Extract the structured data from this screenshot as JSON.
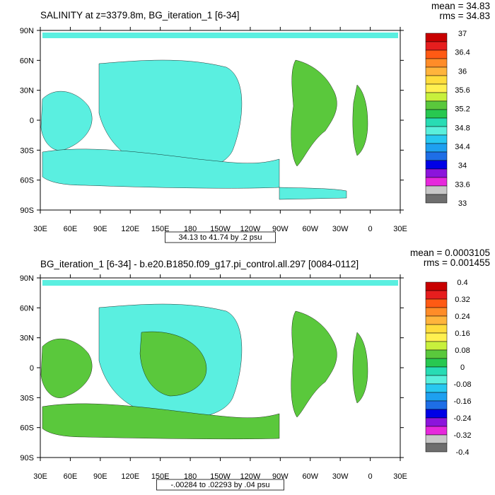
{
  "chart_data": [
    {
      "type": "heatmap",
      "title": "SALINITY at z=3379.8m, BG_iteration_1 [6-34]",
      "stats": {
        "mean": "mean = 34.83",
        "rms": "rms = 34.83"
      },
      "x_ticks": [
        "30E",
        "60E",
        "90E",
        "120E",
        "150E",
        "180",
        "150W",
        "120W",
        "90W",
        "60W",
        "30W",
        "0",
        "30E"
      ],
      "y_ticks": [
        "90N",
        "60N",
        "30N",
        "0",
        "30S",
        "60S",
        "90S"
      ],
      "contour_info": "34.13 to 41.74 by .2 psu",
      "colorbar": {
        "labels": [
          "37",
          "36.4",
          "36",
          "35.6",
          "35.2",
          "34.8",
          "34.4",
          "34",
          "33.6",
          "33"
        ],
        "colors": [
          "#c80000",
          "#e61e1e",
          "#ff5a14",
          "#ff8c28",
          "#ffb43c",
          "#ffdc3c",
          "#fff050",
          "#c8f03c",
          "#5ac83c",
          "#28c850",
          "#28dcb4",
          "#5af0dc",
          "#28c8f0",
          "#1ea0f0",
          "#1e6ee6",
          "#0000e6",
          "#8c14dc",
          "#e628dc",
          "#c8c8c8",
          "#6e6e6e"
        ]
      }
    },
    {
      "type": "heatmap",
      "title": "BG_iteration_1 [6-34] - b.e20.B1850.f09_g17.pi_control.all.297 [0084-0112]",
      "stats": {
        "mean": "mean = 0.0003105",
        "rms": "rms = 0.001455"
      },
      "x_ticks": [
        "30E",
        "60E",
        "90E",
        "120E",
        "150E",
        "180",
        "150W",
        "120W",
        "90W",
        "60W",
        "30W",
        "0",
        "30E"
      ],
      "y_ticks": [
        "90N",
        "60N",
        "30N",
        "0",
        "30S",
        "60S",
        "90S"
      ],
      "contour_info": "-.00284 to .02293 by .04 psu",
      "colorbar": {
        "labels": [
          "0.4",
          "0.32",
          "0.24",
          "0.16",
          "0.08",
          "0",
          "-0.08",
          "-0.16",
          "-0.24",
          "-0.32",
          "-0.4"
        ],
        "colors": [
          "#c80000",
          "#e61e1e",
          "#ff5a14",
          "#ff8c28",
          "#ffb43c",
          "#ffdc3c",
          "#fff050",
          "#c8f03c",
          "#5ac83c",
          "#28c850",
          "#28dcb4",
          "#5af0dc",
          "#28c8f0",
          "#1ea0f0",
          "#1e6ee6",
          "#0000e6",
          "#8c14dc",
          "#e628dc",
          "#c8c8c8",
          "#6e6e6e"
        ]
      }
    }
  ]
}
